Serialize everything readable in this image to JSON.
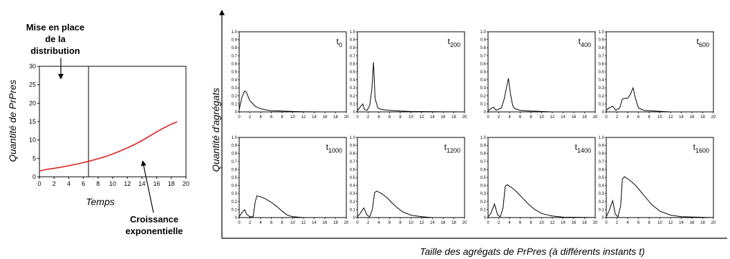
{
  "chart_data": [
    {
      "id": "main",
      "type": "line",
      "xlabel": "Temps",
      "ylabel": "Quantité de PrPres",
      "xlim": [
        0,
        20
      ],
      "ylim": [
        0,
        30
      ],
      "xticks": [
        0,
        2,
        4,
        6,
        8,
        10,
        12,
        14,
        16,
        18,
        20
      ],
      "yticks": [
        0,
        5,
        10,
        15,
        20,
        25,
        30
      ],
      "vline_x": 6.7,
      "series": [
        {
          "color": "#e02020",
          "x": [
            0,
            1,
            2,
            3,
            4,
            5,
            6,
            7,
            8,
            9,
            10,
            11,
            12,
            13,
            14,
            15,
            16,
            17,
            18,
            18.8
          ],
          "y": [
            1.6,
            2.0,
            2.3,
            2.65,
            3.0,
            3.4,
            3.85,
            4.35,
            4.9,
            5.5,
            6.2,
            7.0,
            7.85,
            8.8,
            9.85,
            11.0,
            12.2,
            13.3,
            14.3,
            14.9
          ]
        }
      ],
      "annotations": [
        {
          "key": "setup",
          "lines": [
            "Mise en place",
            "de la",
            "distribution"
          ]
        },
        {
          "key": "growth",
          "lines": [
            "Croissance",
            "exponentielle"
          ]
        }
      ]
    },
    {
      "id": "small-multiples",
      "type": "line",
      "xlabel": "Taille des agrégats de PrPres (à différents instants t)",
      "ylabel": "Quantité d'agrégats",
      "xlim": [
        0,
        20
      ],
      "ylim": [
        0,
        1.0
      ],
      "xticks": [
        0,
        2,
        4,
        6,
        8,
        10,
        12,
        14,
        16,
        18,
        20
      ],
      "yticks": [
        "0",
        "0.1",
        "0.2",
        "0.3",
        "0.4",
        "0.5",
        "0.6",
        "0.7",
        "0.8",
        "0.9",
        "1.0"
      ],
      "panels": [
        {
          "label": "t",
          "sub": "0",
          "x": [
            0,
            0.5,
            1,
            1.3,
            2,
            3,
            4,
            5,
            6,
            8,
            10,
            12,
            14,
            16,
            20
          ],
          "y": [
            0.03,
            0.18,
            0.26,
            0.25,
            0.14,
            0.07,
            0.04,
            0.025,
            0.015,
            0.01,
            0.005,
            0.003,
            0.001,
            0,
            0
          ]
        },
        {
          "label": "t",
          "sub": "200",
          "x": [
            0,
            0.5,
            1,
            1.3,
            1.8,
            2.3,
            2.7,
            3.0,
            3.3,
            3.8,
            4.5,
            6,
            8,
            10,
            20
          ],
          "y": [
            0.01,
            0.06,
            0.1,
            0.03,
            0.02,
            0.08,
            0.28,
            0.62,
            0.17,
            0.05,
            0.03,
            0.02,
            0.01,
            0.005,
            0
          ]
        },
        {
          "label": "t",
          "sub": "400",
          "x": [
            0,
            0.5,
            1,
            1.5,
            2.5,
            3,
            3.5,
            3.8,
            4.2,
            4.6,
            5,
            6,
            8,
            10,
            12,
            20
          ],
          "y": [
            0.01,
            0.04,
            0.06,
            0.02,
            0.05,
            0.16,
            0.32,
            0.42,
            0.22,
            0.08,
            0.04,
            0.02,
            0.01,
            0.005,
            0,
            0
          ]
        },
        {
          "label": "t",
          "sub": "600",
          "x": [
            0,
            0.5,
            1.2,
            1.8,
            2.5,
            3,
            3.5,
            4,
            4.5,
            5,
            5.4,
            6,
            7,
            9,
            12,
            20
          ],
          "y": [
            0.02,
            0.05,
            0.07,
            0.02,
            0.05,
            0.16,
            0.17,
            0.17,
            0.22,
            0.3,
            0.18,
            0.05,
            0.02,
            0.01,
            0,
            0
          ]
        },
        {
          "label": "t",
          "sub": "1000",
          "x": [
            0,
            0.5,
            1,
            1.4,
            2,
            2.6,
            3,
            3.3,
            4,
            5,
            6,
            7,
            8,
            9,
            10,
            12,
            20
          ],
          "y": [
            0.01,
            0.06,
            0.1,
            0.04,
            0.01,
            0.01,
            0.2,
            0.27,
            0.26,
            0.23,
            0.19,
            0.14,
            0.08,
            0.03,
            0.01,
            0,
            0
          ]
        },
        {
          "label": "t",
          "sub": "1200",
          "x": [
            0,
            0.5,
            1.2,
            1.8,
            2.3,
            2.8,
            3.2,
            3.6,
            4.5,
            5.5,
            6.5,
            7.5,
            8.5,
            10,
            12,
            14,
            20
          ],
          "y": [
            0.01,
            0.05,
            0.12,
            0.03,
            0.01,
            0.1,
            0.31,
            0.33,
            0.3,
            0.25,
            0.18,
            0.12,
            0.07,
            0.03,
            0.01,
            0,
            0
          ]
        },
        {
          "label": "t",
          "sub": "1400",
          "x": [
            0,
            0.5,
            1.2,
            1.8,
            2.3,
            2.8,
            3.2,
            3.6,
            4.5,
            5.5,
            6.5,
            7.5,
            8.5,
            10,
            12,
            14,
            20
          ],
          "y": [
            0.01,
            0.05,
            0.17,
            0.03,
            0.01,
            0.12,
            0.39,
            0.41,
            0.37,
            0.31,
            0.24,
            0.17,
            0.11,
            0.05,
            0.02,
            0.005,
            0
          ]
        },
        {
          "label": "t",
          "sub": "1600",
          "x": [
            0,
            0.5,
            1.2,
            1.7,
            2.2,
            2.7,
            3.0,
            3.4,
            4.5,
            5.5,
            6.5,
            7.5,
            8.5,
            10,
            12,
            14,
            20
          ],
          "y": [
            0.01,
            0.08,
            0.21,
            0.04,
            0.01,
            0.15,
            0.48,
            0.51,
            0.46,
            0.4,
            0.32,
            0.24,
            0.16,
            0.08,
            0.03,
            0.01,
            0
          ]
        }
      ]
    }
  ]
}
